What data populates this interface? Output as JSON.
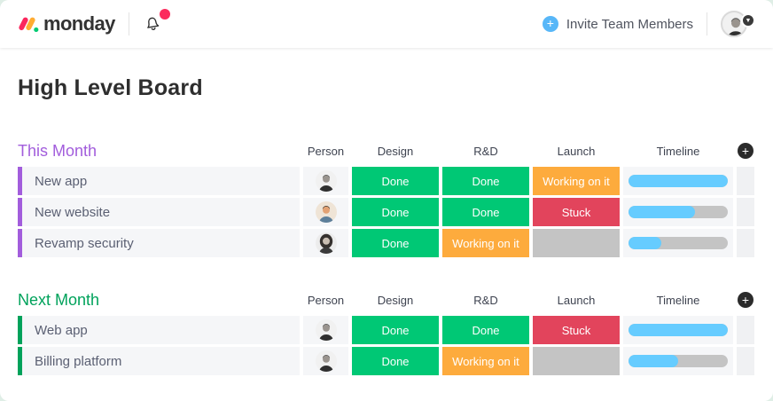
{
  "header": {
    "logo_text": "monday",
    "invite_label": "Invite Team Members",
    "notification_dot_color": "#fb2b5d",
    "invite_plus_color": "#58b7f8",
    "logo_colors": {
      "pill1": "#fb275d",
      "pill2": "#ffac33",
      "dot": "#00ca72"
    }
  },
  "page_title": "High Level Board",
  "board": {
    "columns": [
      "Person",
      "Design",
      "R&D",
      "Launch",
      "Timeline"
    ],
    "status_colors": {
      "Done": "#00c875",
      "Working on it": "#fdab3d",
      "Stuck": "#e2445c",
      "Empty": "#c4c4c4"
    },
    "timeline_colors": {
      "fill": "#66ccff",
      "track": "#c4c4c4"
    },
    "groups": [
      {
        "name": "This Month",
        "color": "#a25ddc",
        "rows": [
          {
            "name": "New app",
            "avatar": "man-suit",
            "statuses": [
              "Done",
              "Done",
              "Working on it"
            ],
            "timeline_percent": 100
          },
          {
            "name": "New website",
            "avatar": "smiling-man",
            "statuses": [
              "Done",
              "Done",
              "Stuck"
            ],
            "timeline_percent": 67
          },
          {
            "name": "Revamp security",
            "avatar": "dark-haired-woman",
            "statuses": [
              "Done",
              "Working on it",
              "Empty"
            ],
            "timeline_percent": 33
          }
        ]
      },
      {
        "name": "Next Month",
        "color": "#00a25b",
        "rows": [
          {
            "name": "Web app",
            "avatar": "man-suit",
            "statuses": [
              "Done",
              "Done",
              "Stuck"
            ],
            "timeline_percent": 100
          },
          {
            "name": "Billing platform",
            "avatar": "man-suit",
            "statuses": [
              "Done",
              "Working on it",
              "Empty"
            ],
            "timeline_percent": 50
          }
        ]
      }
    ]
  }
}
